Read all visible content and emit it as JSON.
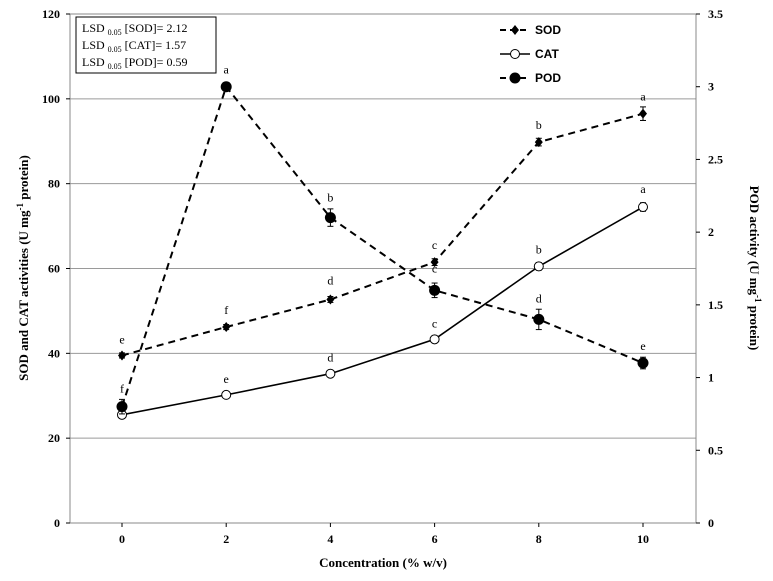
{
  "chart_data": {
    "type": "line",
    "x": [
      0,
      2,
      4,
      6,
      8,
      10
    ],
    "xlabel": "Concentration (% w/v)",
    "ylabel": {
      "prefix": "SOD and CAT activities (U mg",
      "sup": "-1",
      "suffix": " protein)"
    },
    "y2label": {
      "prefix": "POD activity (U mg",
      "sup": "-1",
      "suffix": " protein)"
    },
    "xticks": [
      "0",
      "2",
      "4",
      "6",
      "8",
      "10"
    ],
    "ylim": [
      0,
      120
    ],
    "yticks": [
      0,
      20,
      40,
      60,
      80,
      100,
      120
    ],
    "y2lim": [
      0,
      3.5
    ],
    "y2ticks": [
      "0",
      "0.5",
      "1",
      "1.5",
      "2",
      "2.5",
      "3",
      "3.5"
    ],
    "grid": true,
    "series": [
      {
        "name": "SOD",
        "axis": "left",
        "line": "dashed",
        "marker": "diamond",
        "values": [
          39.5,
          46.2,
          52.7,
          61.5,
          89.8,
          96.5
        ],
        "errors": [
          0.6,
          0.6,
          0.7,
          0.8,
          0.9,
          1.6
        ],
        "letters": [
          "e",
          "f",
          "d",
          "c",
          "b",
          "a"
        ]
      },
      {
        "name": "CAT",
        "axis": "left",
        "line": "solid",
        "marker": "open-circle",
        "values": [
          25.5,
          30.2,
          35.2,
          43.3,
          60.5,
          74.5
        ],
        "errors": [
          0.8,
          0.7,
          0.7,
          0.8,
          0.9,
          1.0
        ],
        "letters": [
          "",
          "e",
          "d",
          "c",
          "b",
          "a"
        ]
      },
      {
        "name": "POD",
        "axis": "right",
        "line": "dashed",
        "marker": "filled-circle",
        "values": [
          0.8,
          3.0,
          2.1,
          1.6,
          1.4,
          1.1
        ],
        "errors": [
          0.05,
          0.02,
          0.06,
          0.05,
          0.07,
          0.04
        ],
        "letters": [
          "f",
          "a",
          "b",
          "c",
          "d",
          "e"
        ]
      }
    ],
    "legend": {
      "position": "top-right",
      "entries": [
        "SOD",
        "CAT",
        "POD"
      ]
    },
    "lsd_box": [
      {
        "prefix": "LSD ",
        "sub": "0.05",
        "suffix": " [SOD]= 2.12"
      },
      {
        "prefix": "LSD ",
        "sub": "0.05",
        "suffix": " [CAT]= 1.57"
      },
      {
        "prefix": "LSD ",
        "sub": "0.05",
        "suffix": " [POD]= 0.59"
      }
    ]
  }
}
